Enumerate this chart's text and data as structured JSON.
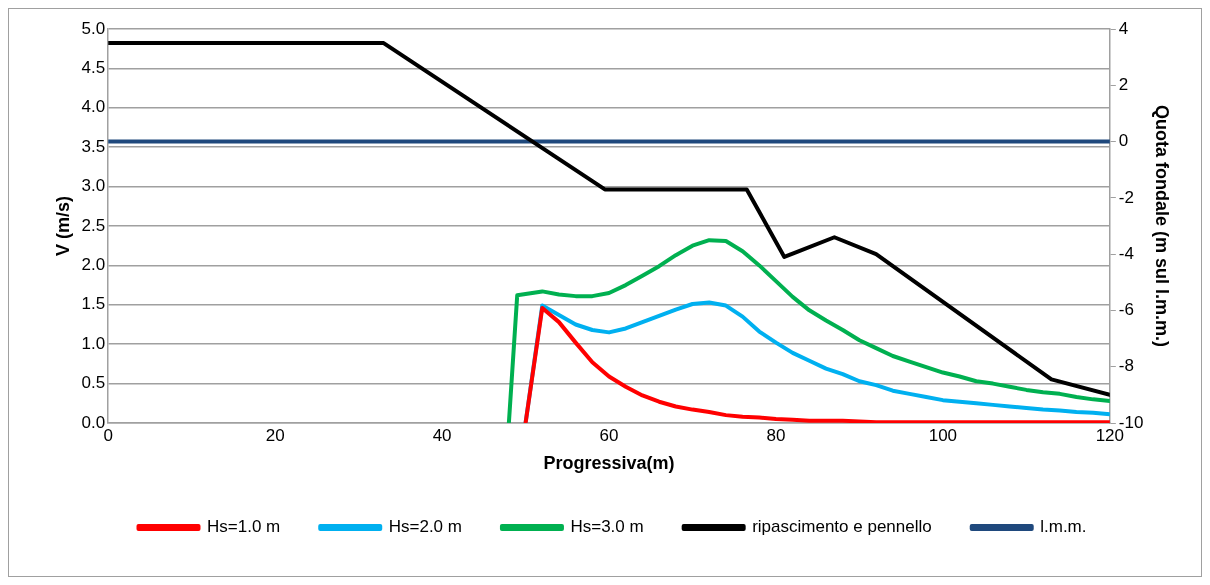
{
  "chart_data": {
    "type": "line",
    "xlabel": "Progressiva(m)",
    "ylabel": "V (m/s)",
    "y2label": "Quota fondale (m sul l.m.m.)",
    "xlim": [
      0,
      120
    ],
    "xticks": [
      0,
      20,
      40,
      60,
      80,
      100,
      120
    ],
    "ylim": [
      0,
      5
    ],
    "yticks": [
      {
        "value": 0,
        "label": "0.0"
      },
      {
        "value": 0.5,
        "label": "0.5"
      },
      {
        "value": 1,
        "label": "1.0"
      },
      {
        "value": 1.5,
        "label": "1.5"
      },
      {
        "value": 2,
        "label": "2.0"
      },
      {
        "value": 2.5,
        "label": "2.5"
      },
      {
        "value": 3,
        "label": "3.0"
      },
      {
        "value": 3.5,
        "label": "3.5"
      },
      {
        "value": 4,
        "label": "4.0"
      },
      {
        "value": 4.5,
        "label": "4.5"
      },
      {
        "value": 5,
        "label": "5.0"
      }
    ],
    "y2lim": [
      -10,
      4
    ],
    "y2ticks": [
      -10,
      -8,
      -6,
      -4,
      -2,
      0,
      2,
      4
    ],
    "grid": "y",
    "legend": "bottom",
    "marker": "none",
    "series": [
      {
        "name": "Hs=1.0 m",
        "color": "#ff0000",
        "x": [
          50,
          52,
          54,
          56,
          58,
          60,
          62,
          64,
          66,
          68,
          70,
          72,
          74,
          76,
          78,
          80,
          82,
          84,
          86,
          88,
          90,
          92,
          100,
          110,
          120
        ],
        "values": [
          0,
          1.46,
          1.28,
          1.02,
          0.77,
          0.59,
          0.46,
          0.35,
          0.27,
          0.21,
          0.17,
          0.14,
          0.1,
          0.08,
          0.07,
          0.05,
          0.04,
          0.03,
          0.03,
          0.03,
          0.02,
          0.01,
          0.01,
          0.01,
          0.01
        ]
      },
      {
        "name": "Hs=2.0 m",
        "color": "#00b0f0",
        "x": [
          50,
          52,
          54,
          56,
          58,
          60,
          62,
          64,
          66,
          68,
          70,
          72,
          74,
          76,
          78,
          80,
          82,
          84,
          86,
          88,
          90,
          92,
          94,
          96,
          98,
          100,
          102,
          104,
          106,
          108,
          110,
          112,
          114,
          116,
          118,
          120
        ],
        "values": [
          0,
          1.49,
          1.37,
          1.25,
          1.18,
          1.15,
          1.2,
          1.28,
          1.36,
          1.44,
          1.51,
          1.53,
          1.49,
          1.35,
          1.16,
          1.02,
          0.89,
          0.79,
          0.69,
          0.62,
          0.53,
          0.48,
          0.41,
          0.37,
          0.33,
          0.29,
          0.27,
          0.25,
          0.23,
          0.21,
          0.19,
          0.17,
          0.16,
          0.14,
          0.13,
          0.11
        ]
      },
      {
        "name": "Hs=3.0 m",
        "color": "#00b050",
        "x": [
          48,
          49,
          52,
          54,
          56,
          58,
          60,
          62,
          64,
          66,
          68,
          70,
          72,
          74,
          76,
          78,
          80,
          82,
          84,
          86,
          88,
          90,
          92,
          94,
          96,
          98,
          100,
          102,
          104,
          106,
          108,
          110,
          112,
          114,
          116,
          118,
          120
        ],
        "values": [
          0,
          1.62,
          1.67,
          1.63,
          1.61,
          1.61,
          1.65,
          1.75,
          1.87,
          1.99,
          2.13,
          2.25,
          2.32,
          2.31,
          2.18,
          2.0,
          1.8,
          1.6,
          1.43,
          1.3,
          1.18,
          1.05,
          0.95,
          0.85,
          0.78,
          0.71,
          0.64,
          0.59,
          0.53,
          0.5,
          0.46,
          0.42,
          0.39,
          0.37,
          0.33,
          0.3,
          0.28
        ]
      },
      {
        "name": "ripascimento e pennello",
        "color": "#000000",
        "axis": "y2",
        "x": [
          0,
          33,
          59.5,
          76.5,
          81,
          87,
          92,
          113,
          120
        ],
        "values": [
          3.5,
          3.5,
          -1.7,
          -1.7,
          -4.1,
          -3.4,
          -4.0,
          -8.45,
          -9.0
        ]
      },
      {
        "name": "l.m.m.",
        "color": "#1f497d",
        "axis": "y2",
        "x": [
          0,
          120
        ],
        "values": [
          0,
          0
        ]
      }
    ]
  }
}
